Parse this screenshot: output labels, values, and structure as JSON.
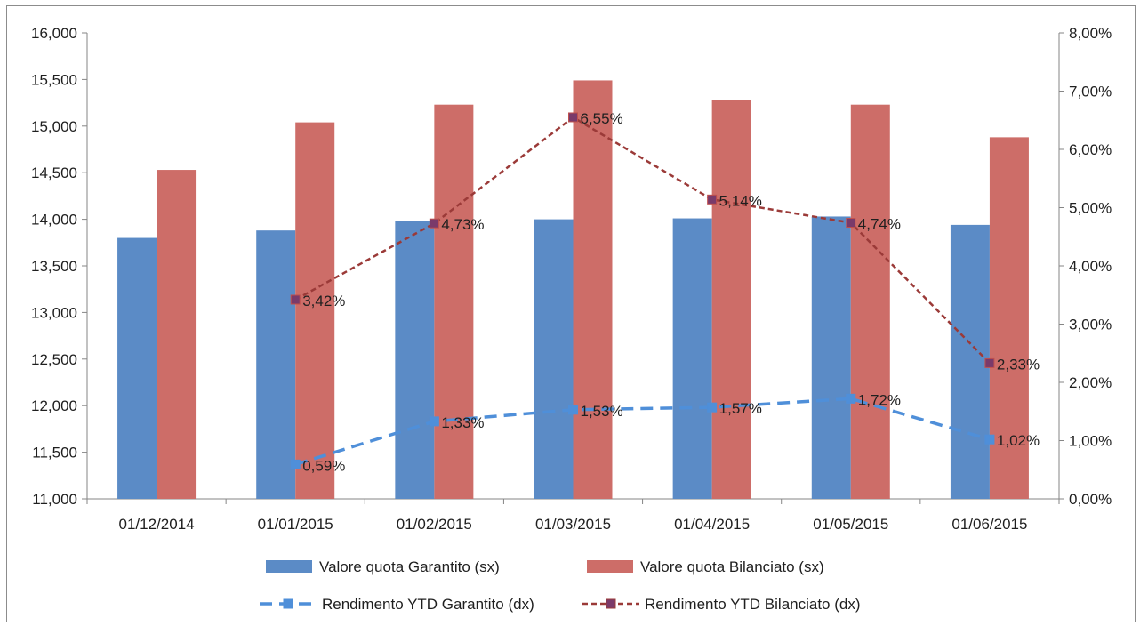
{
  "chart_data": {
    "type": "bar",
    "categories": [
      "01/12/2014",
      "01/01/2015",
      "01/02/2015",
      "01/03/2015",
      "01/04/2015",
      "01/05/2015",
      "01/06/2015"
    ],
    "bar_series": [
      {
        "name": "Valore quota Garantito (sx)",
        "color": "#5b8bc6",
        "values": [
          13.8,
          13.88,
          13.98,
          14.0,
          14.01,
          14.03,
          13.94
        ]
      },
      {
        "name": "Valore quota Bilanciato (sx)",
        "color": "#cd6d68",
        "values": [
          14.53,
          15.04,
          15.23,
          15.49,
          15.28,
          15.23,
          14.88
        ]
      }
    ],
    "line_series": [
      {
        "name": "Rendimento YTD Garantito (dx)",
        "color": "#4f8fd9",
        "dash": "dashed",
        "values": [
          null,
          0.59,
          1.33,
          1.53,
          1.57,
          1.72,
          1.02
        ],
        "labels": [
          "",
          "0,59%",
          "1,33%",
          "1,53%",
          "1,57%",
          "1,72%",
          "1,02%"
        ]
      },
      {
        "name": "Rendimento YTD Bilanciato (dx)",
        "color": "#9b3a38",
        "dash": "dashed",
        "values": [
          null,
          3.42,
          4.73,
          6.55,
          5.14,
          4.74,
          2.33
        ],
        "labels": [
          "",
          "3,42%",
          "4,73%",
          "6,55%",
          "5,14%",
          "4,74%",
          "2,33%"
        ]
      }
    ],
    "y_left": {
      "min": 11,
      "max": 16,
      "step": 0.5,
      "tick_labels": [
        "11,000",
        "11,500",
        "12,000",
        "12,500",
        "13,000",
        "13,500",
        "14,000",
        "14,500",
        "15,000",
        "15,500",
        "16,000"
      ]
    },
    "y_right": {
      "min": 0,
      "max": 8,
      "step": 1,
      "tick_labels": [
        "0,00%",
        "1,00%",
        "2,00%",
        "3,00%",
        "4,00%",
        "5,00%",
        "6,00%",
        "7,00%",
        "8,00%"
      ]
    },
    "title": "",
    "xlabel": "",
    "ylabel": "",
    "grid": false,
    "legend": "bottom"
  }
}
